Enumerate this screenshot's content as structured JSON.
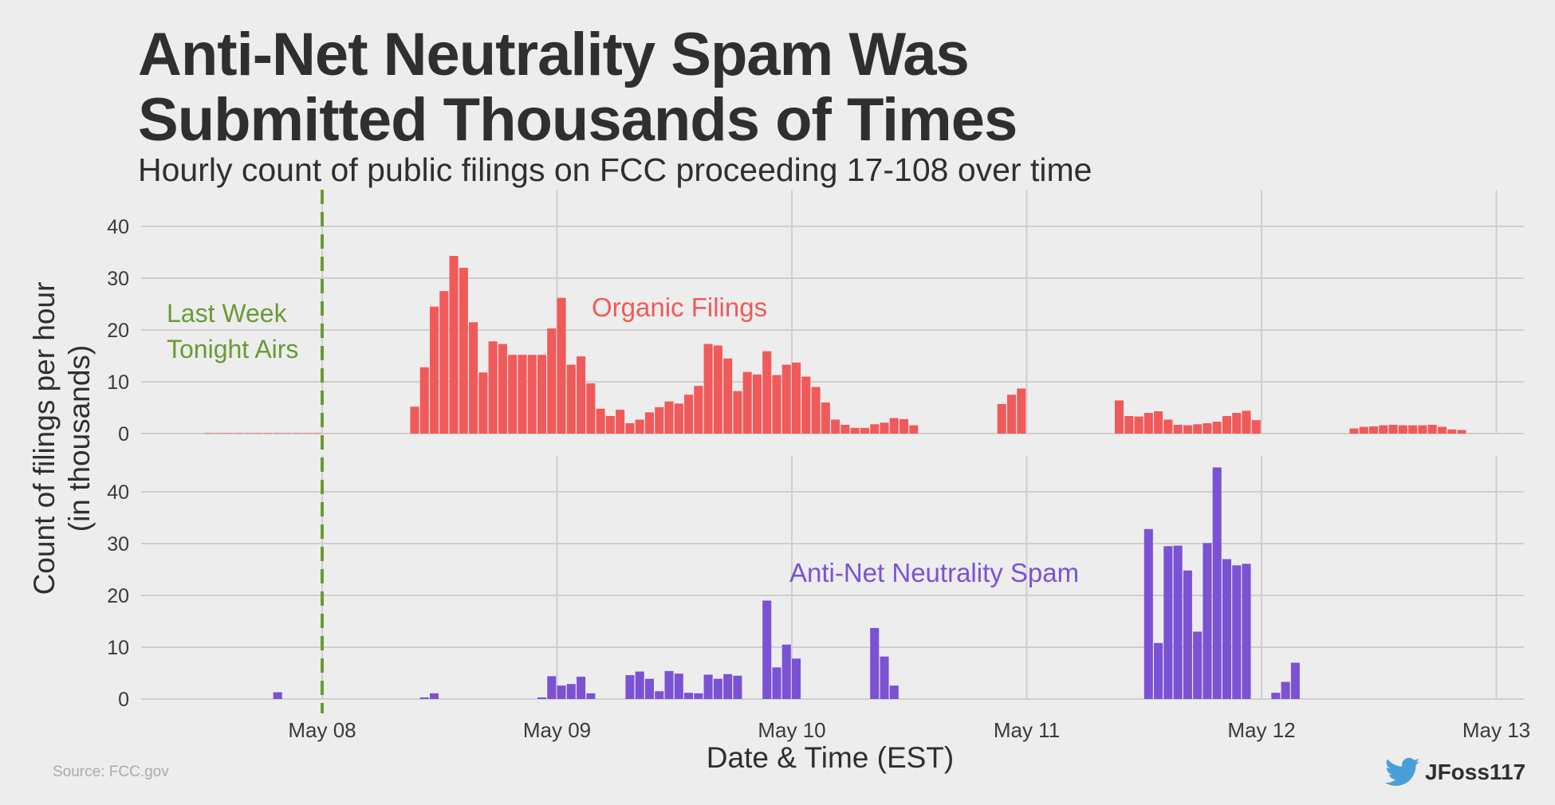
{
  "title_lines": [
    "Anti-Net Neutrality Spam Was",
    "Submitted Thousands of Times"
  ],
  "subtitle": "Hourly count of public filings on FCC proceeding 17-108 over time",
  "source": "Source: FCC.gov",
  "twitter_handle": "JFoss117",
  "chart_data": {
    "type": "bar",
    "title": "Anti-Net Neutrality Spam Was Submitted Thousands of Times",
    "subtitle": "Hourly count of public filings on FCC proceeding 17-108 over time",
    "xlabel": "Date & Time (EST)",
    "ylabel": "Count of filings per hour (in thousands)",
    "ylabel_lines": [
      "Count of filings per hour",
      "(in thousands)"
    ],
    "x_unit": "hours since May 08 00:00 EST",
    "x_range": [
      -43.2,
      128
    ],
    "x_ticks": [
      {
        "hour": 0,
        "label": "May 08"
      },
      {
        "hour": 24,
        "label": "May 09"
      },
      {
        "hour": 48,
        "label": "May 10"
      },
      {
        "hour": 72,
        "label": "May 11"
      },
      {
        "hour": 96,
        "label": "May 12"
      },
      {
        "hour": 120,
        "label": "May 13"
      }
    ],
    "ylim": [
      0,
      47
    ],
    "y_ticks": [
      0,
      10,
      20,
      30,
      40
    ],
    "grid": true,
    "vline": {
      "hour": 0,
      "label_lines": [
        "Last Week",
        "Tonight Airs"
      ],
      "color": "#6a9a35"
    },
    "panels": [
      {
        "name": "Organic Filings",
        "color": "#f05a5a",
        "bars": [
          [
            -12,
            0.1
          ],
          [
            -11,
            0.1
          ],
          [
            -10,
            0.1
          ],
          [
            -9,
            0.1
          ],
          [
            -8,
            0.1
          ],
          [
            -7,
            0.1
          ],
          [
            -6,
            0.1
          ],
          [
            -5,
            0.1
          ],
          [
            -4,
            0.1
          ],
          [
            -3,
            0.1
          ],
          [
            -2,
            0.1
          ],
          [
            -1,
            0.1
          ],
          [
            9,
            5.2
          ],
          [
            10,
            12.8
          ],
          [
            11,
            24.5
          ],
          [
            12,
            27.5
          ],
          [
            13,
            34.3
          ],
          [
            14,
            32.0
          ],
          [
            15,
            21.5
          ],
          [
            16,
            11.8
          ],
          [
            17,
            17.8
          ],
          [
            18,
            17.3
          ],
          [
            19,
            15.2
          ],
          [
            20,
            15.2
          ],
          [
            21,
            15.2
          ],
          [
            22,
            15.2
          ],
          [
            23,
            20.3
          ],
          [
            24,
            26.2
          ],
          [
            25,
            13.3
          ],
          [
            26,
            14.9
          ],
          [
            27,
            9.7
          ],
          [
            28,
            4.8
          ],
          [
            29,
            3.4
          ],
          [
            30,
            4.6
          ],
          [
            31,
            2.0
          ],
          [
            32,
            2.7
          ],
          [
            33,
            4.1
          ],
          [
            34,
            5.1
          ],
          [
            35,
            6.2
          ],
          [
            36,
            5.8
          ],
          [
            37,
            7.5
          ],
          [
            38,
            9.2
          ],
          [
            39,
            17.3
          ],
          [
            40,
            17.0
          ],
          [
            41,
            14.5
          ],
          [
            42,
            8.2
          ],
          [
            43,
            11.9
          ],
          [
            44,
            11.4
          ],
          [
            45,
            15.9
          ],
          [
            46,
            11.3
          ],
          [
            47,
            13.3
          ],
          [
            48,
            13.7
          ],
          [
            49,
            11.0
          ],
          [
            50,
            9.0
          ],
          [
            51,
            6.0
          ],
          [
            52,
            2.7
          ],
          [
            53,
            1.7
          ],
          [
            54,
            1.1
          ],
          [
            55,
            1.1
          ],
          [
            56,
            1.8
          ],
          [
            57,
            2.1
          ],
          [
            58,
            3.0
          ],
          [
            59,
            2.8
          ],
          [
            60,
            1.6
          ],
          [
            69,
            5.7
          ],
          [
            70,
            7.5
          ],
          [
            71,
            8.7
          ],
          [
            81,
            6.4
          ],
          [
            82,
            3.4
          ],
          [
            83,
            3.3
          ],
          [
            84,
            4.0
          ],
          [
            85,
            4.3
          ],
          [
            86,
            2.7
          ],
          [
            87,
            1.7
          ],
          [
            88,
            1.6
          ],
          [
            89,
            1.8
          ],
          [
            90,
            2.0
          ],
          [
            91,
            2.3
          ],
          [
            92,
            3.4
          ],
          [
            93,
            4.0
          ],
          [
            94,
            4.4
          ],
          [
            95,
            2.6
          ],
          [
            105,
            1.0
          ],
          [
            106,
            1.3
          ],
          [
            107,
            1.4
          ],
          [
            108,
            1.6
          ],
          [
            109,
            1.7
          ],
          [
            110,
            1.6
          ],
          [
            111,
            1.6
          ],
          [
            112,
            1.6
          ],
          [
            113,
            1.7
          ],
          [
            114,
            1.3
          ],
          [
            115,
            0.8
          ],
          [
            116,
            0.7
          ]
        ]
      },
      {
        "name": "Anti-Net Neutrality Spam",
        "color": "#7b52d4",
        "bars": [
          [
            -5,
            1.3
          ],
          [
            10,
            0.3
          ],
          [
            11,
            1.1
          ],
          [
            22,
            0.3
          ],
          [
            23,
            4.4
          ],
          [
            24,
            2.6
          ],
          [
            25,
            2.9
          ],
          [
            26,
            4.3
          ],
          [
            27,
            1.1
          ],
          [
            31,
            4.6
          ],
          [
            32,
            5.3
          ],
          [
            33,
            3.9
          ],
          [
            34,
            1.5
          ],
          [
            35,
            5.4
          ],
          [
            36,
            4.9
          ],
          [
            37,
            1.2
          ],
          [
            38,
            1.1
          ],
          [
            39,
            4.7
          ],
          [
            40,
            3.9
          ],
          [
            41,
            4.8
          ],
          [
            42,
            4.5
          ],
          [
            45,
            19.0
          ],
          [
            46,
            6.1
          ],
          [
            47,
            10.5
          ],
          [
            48,
            7.8
          ],
          [
            56,
            13.7
          ],
          [
            57,
            8.2
          ],
          [
            58,
            2.6
          ],
          [
            84,
            32.8
          ],
          [
            85,
            10.8
          ],
          [
            86,
            29.5
          ],
          [
            87,
            29.6
          ],
          [
            88,
            24.8
          ],
          [
            89,
            13.0
          ],
          [
            90,
            30.1
          ],
          [
            91,
            44.7
          ],
          [
            92,
            27.0
          ],
          [
            93,
            25.8
          ],
          [
            94,
            26.1
          ],
          [
            97,
            1.2
          ],
          [
            98,
            3.3
          ],
          [
            99,
            7.0
          ]
        ]
      }
    ]
  }
}
